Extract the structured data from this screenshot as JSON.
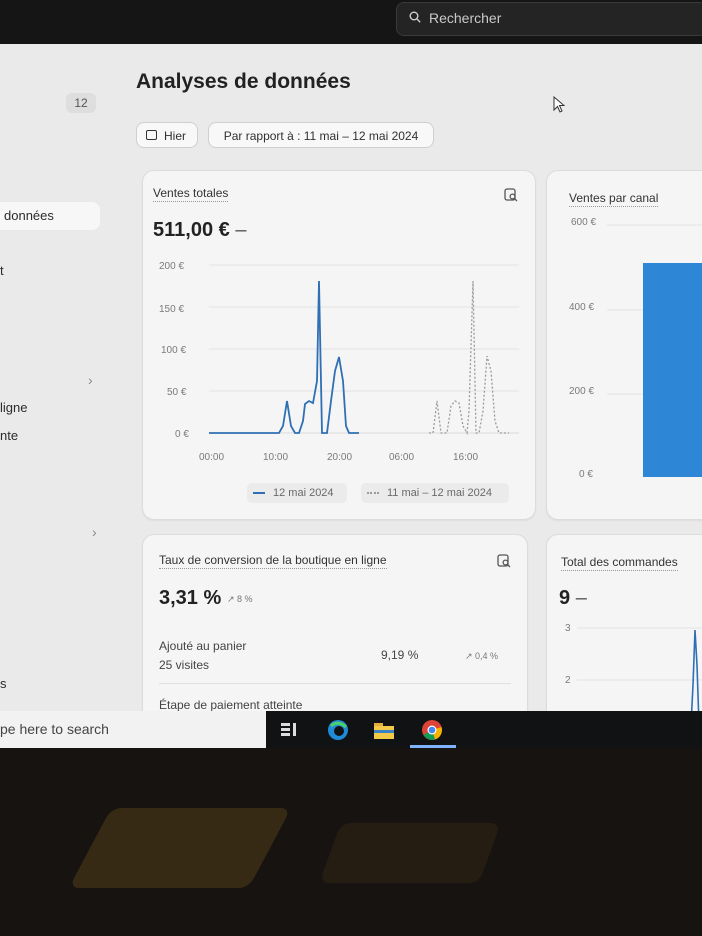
{
  "topbar": {
    "search_placeholder": "Rechercher"
  },
  "sidebar": {
    "badge": "12",
    "active_item": "données",
    "frag_t": "t",
    "frag_ligne": "ligne",
    "frag_nte": "nte",
    "frag_s": "s"
  },
  "header": {
    "title": "Analyses de données",
    "date_button": "Hier",
    "compare_button": "Par rapport à : 11 mai – 12 mai 2024"
  },
  "sales_card": {
    "title": "Ventes totales",
    "value": "511,00 €",
    "dash": "–",
    "y_ticks": [
      "200 €",
      "150 €",
      "100 €",
      "50 €",
      "0 €"
    ],
    "x_ticks": [
      "00:00",
      "10:00",
      "20:00",
      "06:00",
      "16:00"
    ],
    "legend_current": "12 mai 2024",
    "legend_previous": "11 mai – 12 mai 2024",
    "line_color": "#2f6fb3",
    "prev_color": "#9a9a9a"
  },
  "chart_data": {
    "type": "line",
    "title": "Ventes totales",
    "x": [
      "00:00",
      "10:00",
      "20:00",
      "06:00",
      "16:00"
    ],
    "ylim": [
      0,
      200
    ],
    "series": [
      {
        "name": "12 mai 2024",
        "style": "solid",
        "peaks_eur": [
          40,
          40,
          185,
          100
        ]
      },
      {
        "name": "11 mai – 12 mai 2024",
        "style": "dotted",
        "peaks_eur": [
          38,
          45,
          180,
          88
        ]
      }
    ]
  },
  "channel_card": {
    "title": "Ventes par canal",
    "y_ticks": [
      "600 €",
      "400 €",
      "200 €",
      "0 €"
    ],
    "bar_color": "#2e86d6"
  },
  "conversion_card": {
    "title": "Taux de conversion de la boutique en ligne",
    "value": "3,31 %",
    "trend": "↗ 8 %",
    "rows": [
      {
        "label": "Ajouté au panier",
        "sub": "25 visites",
        "value": "9,19 %",
        "trend": "↗ 0,4 %"
      },
      {
        "label": "Étape de paiement atteinte",
        "sub": "",
        "value": "",
        "trend": ""
      }
    ]
  },
  "orders_card": {
    "title": "Total des commandes",
    "value": "9",
    "dash": "–",
    "y_ticks": [
      "3",
      "2"
    ]
  },
  "taskbar": {
    "search_text": "pe here to search"
  }
}
